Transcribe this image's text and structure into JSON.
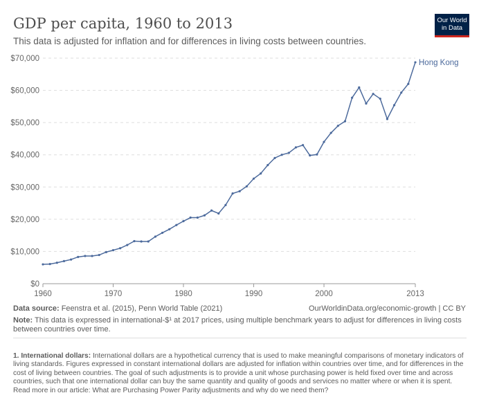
{
  "header": {
    "title": "GDP per capita, 1960 to 2013",
    "subtitle": "This data is adjusted for inflation and for differences in living costs between countries.",
    "logo": "Our World in Data"
  },
  "chart_data": {
    "type": "line",
    "title": "GDP per capita, 1960 to 2013",
    "xlabel": "",
    "ylabel": "",
    "xlim": [
      1960,
      2013
    ],
    "ylim": [
      0,
      70000
    ],
    "yticks": [
      0,
      10000,
      20000,
      30000,
      40000,
      50000,
      60000,
      70000
    ],
    "ytick_labels": [
      "$0",
      "$10,000",
      "$20,000",
      "$30,000",
      "$40,000",
      "$50,000",
      "$60,000",
      "$70,000"
    ],
    "xticks": [
      1960,
      1970,
      1980,
      1990,
      2000,
      2013
    ],
    "xtick_labels": [
      "1960",
      "1970",
      "1980",
      "1990",
      "2000",
      "2013"
    ],
    "grid": true,
    "series": [
      {
        "name": "Hong Kong",
        "color": "#4c6a9c",
        "x": [
          1960,
          1961,
          1962,
          1963,
          1964,
          1965,
          1966,
          1967,
          1968,
          1969,
          1970,
          1971,
          1972,
          1973,
          1974,
          1975,
          1976,
          1977,
          1978,
          1979,
          1980,
          1981,
          1982,
          1983,
          1984,
          1985,
          1986,
          1987,
          1988,
          1989,
          1990,
          1991,
          1992,
          1993,
          1994,
          1995,
          1996,
          1997,
          1998,
          1999,
          2000,
          2001,
          2002,
          2003,
          2004,
          2005,
          2006,
          2007,
          2008,
          2009,
          2010,
          2011,
          2012,
          2013
        ],
        "values": [
          6000,
          6100,
          6500,
          7000,
          7500,
          8300,
          8600,
          8600,
          8900,
          9800,
          10400,
          11000,
          12000,
          13200,
          13100,
          13100,
          14600,
          15800,
          16900,
          18200,
          19400,
          20500,
          20500,
          21200,
          22700,
          21800,
          24400,
          28000,
          28700,
          30200,
          32600,
          34200,
          36800,
          39000,
          40000,
          40600,
          42300,
          43000,
          39800,
          40100,
          44000,
          46800,
          49000,
          50400,
          57700,
          60900,
          55900,
          58900,
          57400,
          51100,
          55400,
          59300,
          62000,
          68700
        ]
      }
    ]
  },
  "footer": {
    "source_label": "Data source:",
    "source": "Feenstra et al. (2015), Penn World Table (2021)",
    "url": "OurWorldinData.org/economic-growth | CC BY",
    "note_label": "Note:",
    "note": "This data is expressed in international-$¹ at 2017 prices, using multiple benchmark years to adjust for differences in living costs between countries over time.",
    "footnote_label": "1. International dollars:",
    "footnote": "International dollars are a hypothetical currency that is used to make meaningful comparisons of monetary indicators of living standards. Figures expressed in constant international dollars are adjusted for inflation within countries over time, and for differences in the cost of living between countries. The goal of such adjustments is to provide a unit whose purchasing power is held fixed over time and across countries, such that one international dollar can buy the same quantity and quality of goods and services no matter where or when it is spent. Read more in our article: What are Purchasing Power Parity adjustments and why do we need them?"
  }
}
